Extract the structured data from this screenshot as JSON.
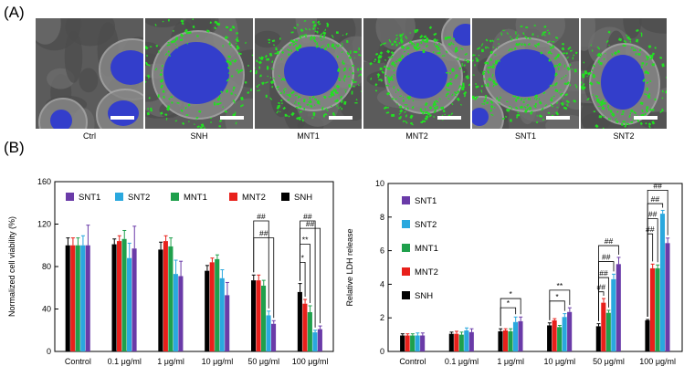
{
  "panels": {
    "a": "(A)",
    "b": "(B)"
  },
  "images": [
    {
      "caption": "Ctrl",
      "green": 0
    },
    {
      "caption": "SNH",
      "green": 2
    },
    {
      "caption": "MNT1",
      "green": 3
    },
    {
      "caption": "MNT2",
      "green": 3
    },
    {
      "caption": "SNT1",
      "green": 3
    },
    {
      "caption": "SNT2",
      "green": 2
    }
  ],
  "colors": {
    "SNT1": "#6a3ba8",
    "SNT2": "#2aa8de",
    "MNT1": "#1fa04c",
    "MNT2": "#e8201b",
    "SNH": "#000000",
    "nuclei": "#2632d8",
    "particles": "#22e022"
  },
  "chart_data": [
    {
      "type": "bar",
      "categories": [
        "Control",
        "0.1 μg/ml",
        "1 μg/ml",
        "10 μg/ml",
        "50 μg/ml",
        "100 μg/ml"
      ],
      "ylabel": "Normalized cell viability (%)",
      "ylim": [
        0,
        160
      ],
      "yticks": [
        0,
        40,
        80,
        120,
        160
      ],
      "legend": "top, two rows",
      "series": [
        {
          "name": "SNH",
          "values": [
            100,
            101,
            96,
            76,
            67,
            56
          ],
          "errors": [
            7,
            5,
            7,
            5,
            5,
            8
          ]
        },
        {
          "name": "MNT2",
          "values": [
            100,
            104,
            104,
            84,
            67,
            45
          ],
          "errors": [
            7,
            5,
            5,
            4,
            5,
            4
          ]
        },
        {
          "name": "MNT1",
          "values": [
            100,
            106,
            99,
            87,
            62,
            37
          ],
          "errors": [
            7,
            8,
            8,
            4,
            5,
            6
          ]
        },
        {
          "name": "SNT2",
          "values": [
            100,
            88,
            73,
            69,
            34,
            18
          ],
          "errors": [
            9,
            14,
            13,
            8,
            4,
            2
          ]
        },
        {
          "name": "SNT1",
          "values": [
            100,
            97,
            71,
            53,
            26,
            21
          ],
          "errors": [
            19,
            21,
            14,
            12,
            3,
            3
          ]
        }
      ],
      "annotations": [
        {
          "category": "50 μg/ml",
          "label": "##",
          "between": [
            "SNH",
            "SNT2"
          ],
          "level": 123
        },
        {
          "category": "50 μg/ml",
          "label": "##",
          "between": [
            "SNH",
            "SNT1"
          ],
          "level": 107
        },
        {
          "category": "100 μg/ml",
          "label": "##",
          "between": [
            "SNH",
            "SNT2"
          ],
          "level": 123
        },
        {
          "category": "100 μg/ml",
          "label": "##",
          "between": [
            "SNH",
            "SNT1"
          ],
          "level": 116
        },
        {
          "category": "100 μg/ml",
          "label": "**",
          "between": [
            "SNH",
            "MNT1"
          ],
          "level": 101
        },
        {
          "category": "100 μg/ml",
          "label": "*",
          "between": [
            "SNH",
            "MNT2"
          ],
          "level": 84
        }
      ]
    },
    {
      "type": "bar",
      "categories": [
        "Control",
        "0.1 μg/ml",
        "1 μg/ml",
        "10 μg/ml",
        "50 μg/ml",
        "100 μg/ml"
      ],
      "ylabel": "Relative LDH release",
      "ylim": [
        0,
        10
      ],
      "yticks": [
        0,
        2,
        4,
        6,
        8,
        10
      ],
      "legend": "top-left, vertical",
      "series": [
        {
          "name": "SNH",
          "values": [
            0.95,
            1.05,
            1.2,
            1.55,
            1.5,
            1.85
          ],
          "errors": [
            0.1,
            0.1,
            0.15,
            0.15,
            0.15,
            0.05
          ]
        },
        {
          "name": "MNT2",
          "values": [
            0.95,
            1.05,
            1.25,
            1.85,
            2.9,
            4.95
          ],
          "errors": [
            0.1,
            0.15,
            0.1,
            0.1,
            0.25,
            0.25
          ]
        },
        {
          "name": "MNT1",
          "values": [
            0.95,
            1.0,
            1.2,
            1.45,
            2.3,
            4.95
          ],
          "errors": [
            0.1,
            0.15,
            0.15,
            0.1,
            0.15,
            0.2
          ]
        },
        {
          "name": "SNT2",
          "values": [
            0.95,
            1.25,
            1.75,
            2.05,
            4.3,
            8.2
          ],
          "errors": [
            0.15,
            0.15,
            0.3,
            0.2,
            0.3,
            0.2
          ]
        },
        {
          "name": "SNT1",
          "values": [
            0.95,
            1.15,
            1.8,
            2.35,
            5.2,
            6.45
          ],
          "errors": [
            0.15,
            0.2,
            0.25,
            0.25,
            0.4,
            0.3
          ]
        }
      ],
      "annotations": [
        {
          "category": "1 μg/ml",
          "label": "*",
          "between": [
            "SNH",
            "SNT2"
          ],
          "level": 2.6
        },
        {
          "category": "1 μg/ml",
          "label": "*",
          "between": [
            "SNH",
            "SNT1"
          ],
          "level": 3.15
        },
        {
          "category": "10 μg/ml",
          "label": "*",
          "between": [
            "SNH",
            "SNT2"
          ],
          "level": 3.0
        },
        {
          "category": "10 μg/ml",
          "label": "**",
          "between": [
            "SNH",
            "SNT1"
          ],
          "level": 3.65
        },
        {
          "category": "50 μg/ml",
          "label": "##",
          "between": [
            "SNH",
            "MNT2"
          ],
          "level": 3.55
        },
        {
          "category": "50 μg/ml",
          "label": "##",
          "between": [
            "SNH",
            "MNT1"
          ],
          "level": 4.4
        },
        {
          "category": "50 μg/ml",
          "label": "##",
          "between": [
            "SNH",
            "SNT2"
          ],
          "level": 5.35
        },
        {
          "category": "50 μg/ml",
          "label": "##",
          "between": [
            "SNH",
            "SNT1"
          ],
          "level": 6.3
        },
        {
          "category": "100 μg/ml",
          "label": "##",
          "between": [
            "SNH",
            "MNT2"
          ],
          "level": 7.0
        },
        {
          "category": "100 μg/ml",
          "label": "##",
          "between": [
            "SNH",
            "MNT1"
          ],
          "level": 7.9
        },
        {
          "category": "100 μg/ml",
          "label": "##",
          "between": [
            "SNH",
            "SNT2"
          ],
          "level": 8.8
        },
        {
          "category": "100 μg/ml",
          "label": "##",
          "between": [
            "SNH",
            "SNT1"
          ],
          "level": 9.6
        }
      ]
    }
  ]
}
